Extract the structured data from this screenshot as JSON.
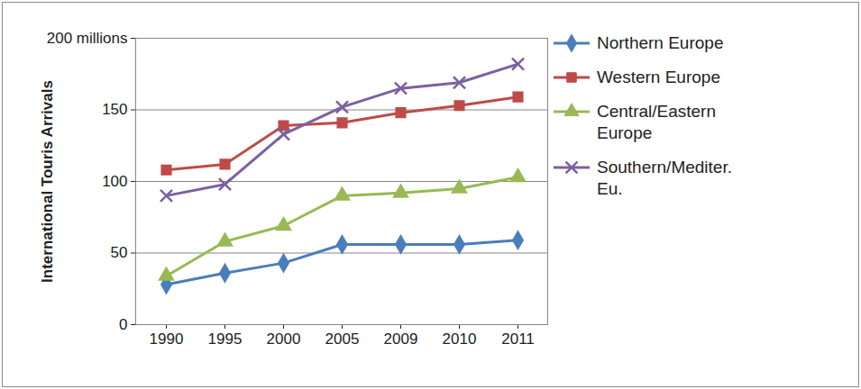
{
  "chart_data": {
    "type": "line",
    "categories": [
      "1990",
      "1995",
      "2000",
      "2005",
      "2009",
      "2010",
      "2011"
    ],
    "series": [
      {
        "name": "Northern Europe",
        "color": "#4a7ebb",
        "marker": "diamond",
        "values": [
          28,
          36,
          43,
          56,
          56,
          56,
          59
        ]
      },
      {
        "name": "Western Europe",
        "color": "#be4b48",
        "marker": "square",
        "values": [
          108,
          112,
          139,
          141,
          148,
          153,
          159
        ]
      },
      {
        "name": "Central/Eastern Europe",
        "color": "#98b954",
        "marker": "triangle",
        "values": [
          34,
          58,
          69,
          90,
          92,
          95,
          103
        ]
      },
      {
        "name": "Southern/Mediter. Eu.",
        "color": "#7d60a0",
        "marker": "x",
        "values": [
          90,
          98,
          133,
          152,
          165,
          169,
          182
        ]
      }
    ],
    "y_label": "International Touris Arrivals",
    "ylim": [
      0,
      200
    ],
    "yticks": [
      0,
      50,
      100,
      150,
      {
        "value": 200,
        "label": "200 millions"
      }
    ],
    "grid": true,
    "legend": "right"
  }
}
